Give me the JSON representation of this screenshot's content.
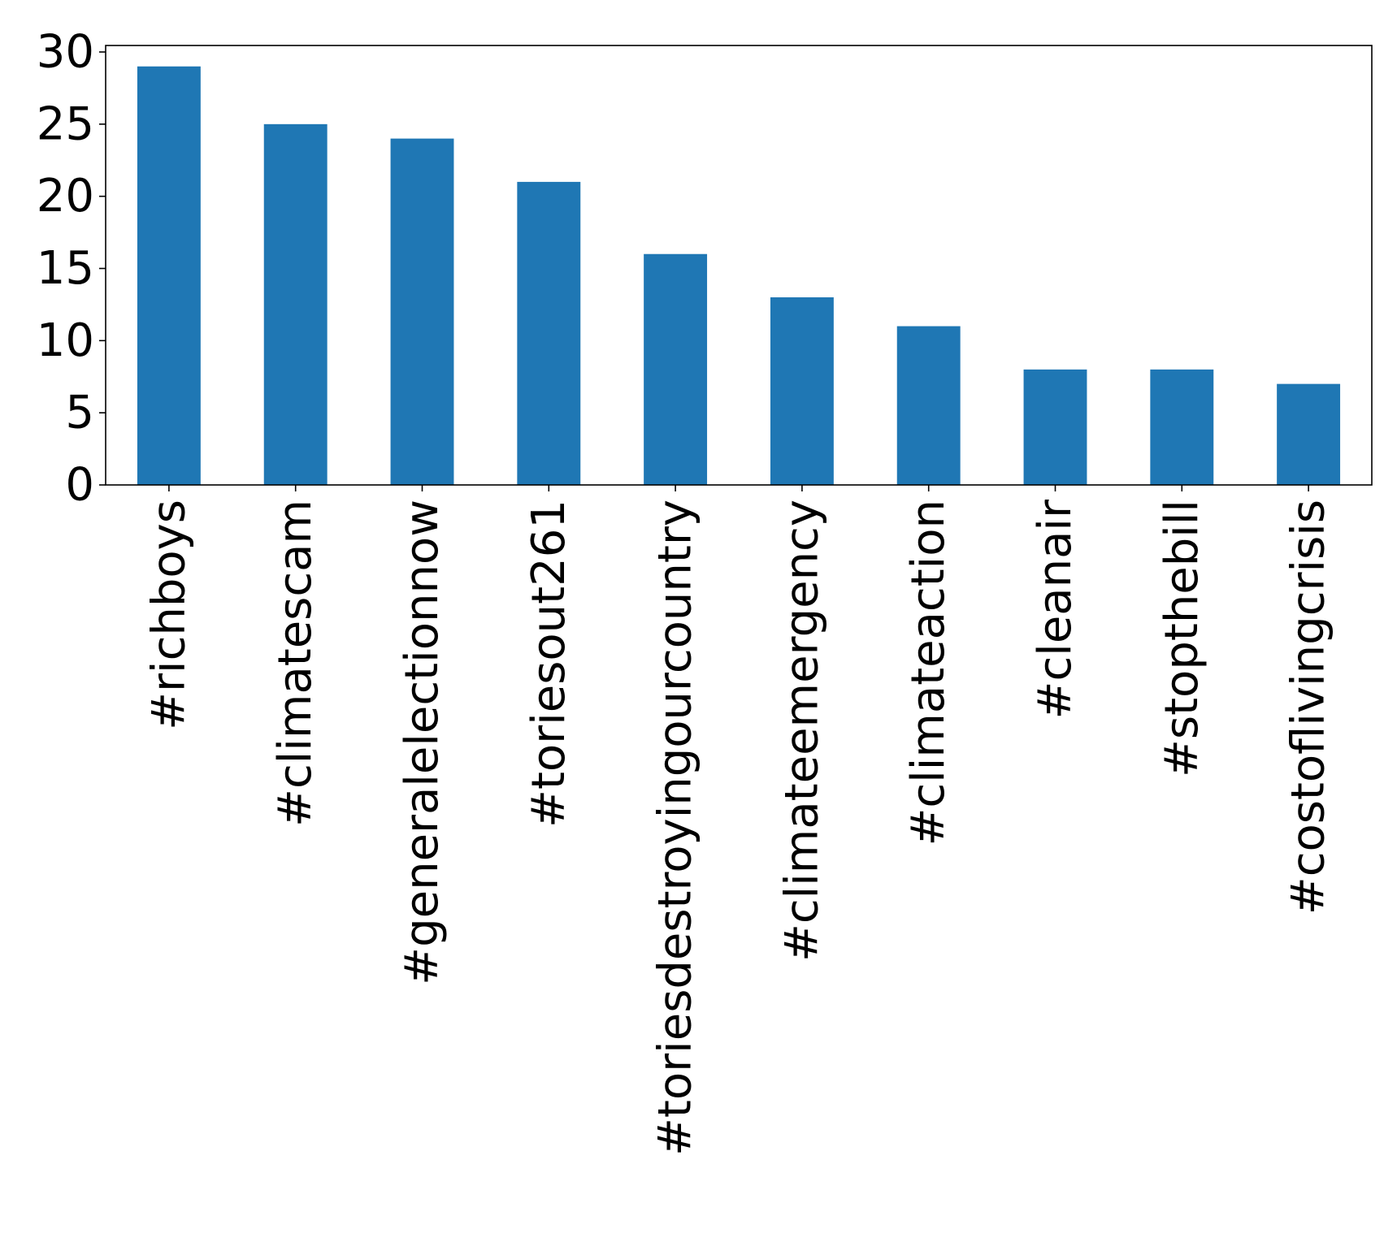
{
  "chart_data": {
    "type": "bar",
    "title": "",
    "xlabel": "",
    "ylabel": "",
    "categories": [
      "#richboys",
      "#climatescam",
      "#generalelectionnow",
      "#toriesout261",
      "#toriesdestroyingourcountry",
      "#climateemergency",
      "#climateaction",
      "#cleanair",
      "#stopthebill",
      "#costoflivingcrisis"
    ],
    "values": [
      29,
      25,
      24,
      21,
      16,
      13,
      11,
      8,
      8,
      7
    ],
    "ylim": [
      0,
      30.45
    ],
    "yticks": [
      0,
      5,
      10,
      15,
      20,
      25,
      30
    ],
    "grid": false,
    "legend": "none",
    "bar_color": "#1f77b4"
  }
}
